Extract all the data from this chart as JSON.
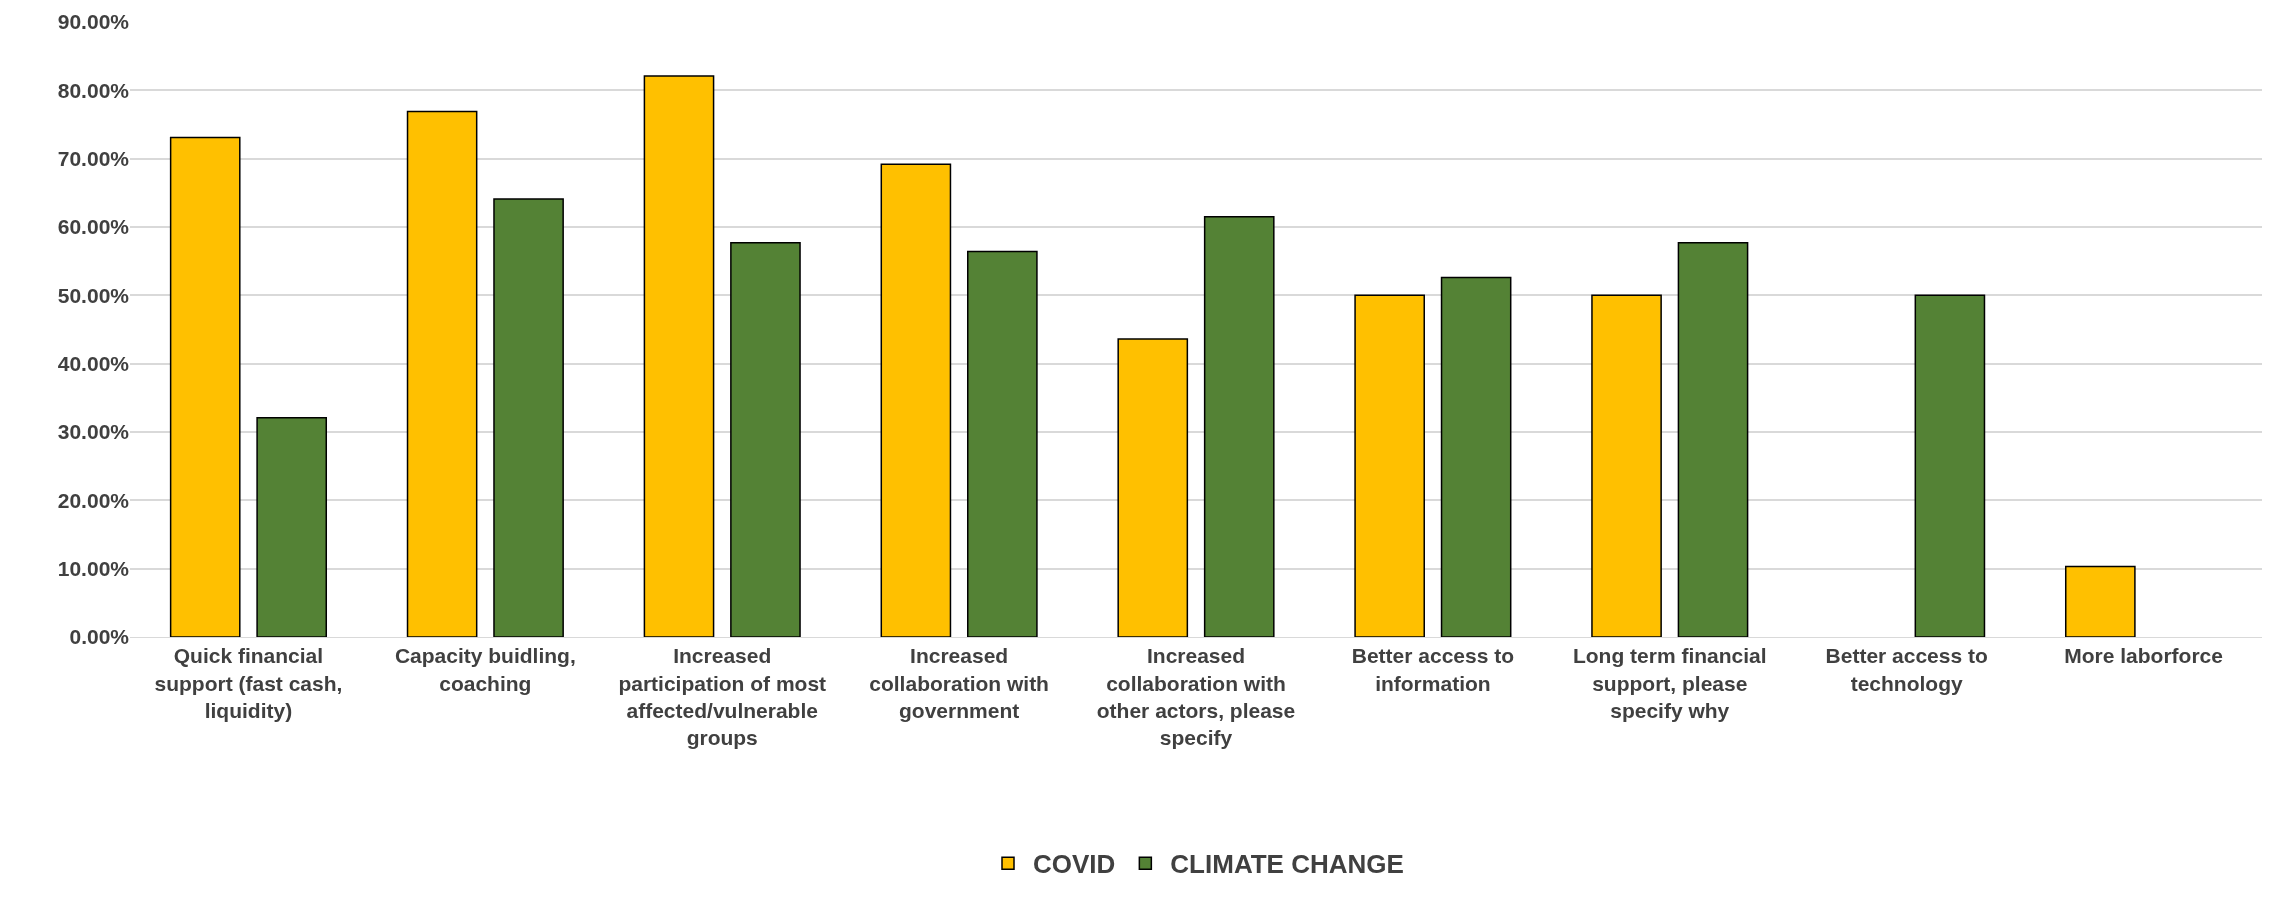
{
  "chart_data": {
    "type": "bar",
    "categories": [
      "Quick financial support (fast cash, liquidity)",
      "Capacity buidling, coaching",
      "Increased participation of most affected/vulnerable groups",
      "Increased collaboration with government",
      "Increased collaboration with other actors, please specify",
      "Better access to information",
      "Long term financial support, please specify why",
      "Better access to technology",
      "More laborforce"
    ],
    "series": [
      {
        "name": "COVID",
        "color": "#ffc000",
        "values": [
          73.1,
          76.9,
          82.1,
          69.2,
          43.6,
          50,
          50,
          null,
          10.3
        ]
      },
      {
        "name": "CLIMATE CHANGE",
        "color": "#548235",
        "values": [
          32.1,
          64.1,
          57.7,
          56.4,
          61.5,
          52.6,
          57.7,
          50,
          null
        ]
      }
    ],
    "ylim": [
      0,
      90
    ],
    "yticks": [
      {
        "value": 0,
        "label": "0.00%"
      },
      {
        "value": 10,
        "label": "10.00%"
      },
      {
        "value": 20,
        "label": "20.00%"
      },
      {
        "value": 30,
        "label": "30.00%"
      },
      {
        "value": 40,
        "label": "40.00%"
      },
      {
        "value": 50,
        "label": "50.00%"
      },
      {
        "value": 60,
        "label": "60.00%"
      },
      {
        "value": 70,
        "label": "70.00%"
      },
      {
        "value": 80,
        "label": "80.00%"
      },
      {
        "value": 90,
        "label": "90.00%"
      }
    ],
    "grid": "y",
    "legend": "bottom"
  }
}
